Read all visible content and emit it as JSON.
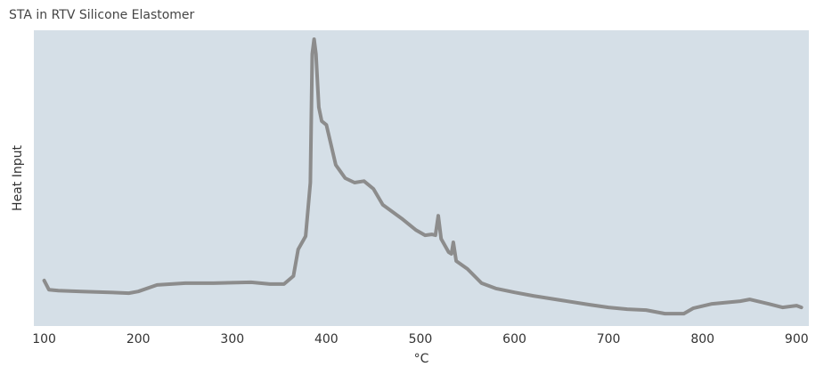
{
  "chart_data": {
    "type": "line",
    "title": "STA in RTV Silicone Elastomer",
    "x_label": "°C",
    "y_label": "Heat Input",
    "background": "#d5dfe7",
    "x": [
      100,
      105,
      115,
      140,
      170,
      190,
      200,
      220,
      250,
      280,
      320,
      340,
      355,
      365,
      370,
      378,
      383,
      385,
      387,
      389,
      392,
      395,
      400,
      410,
      420,
      430,
      440,
      450,
      460,
      480,
      495,
      505,
      512,
      516,
      519,
      522,
      530,
      533,
      535,
      538,
      550,
      565,
      580,
      600,
      620,
      650,
      680,
      700,
      720,
      740,
      760,
      780,
      790,
      810,
      840,
      850,
      870,
      885,
      900,
      905
    ],
    "series": [
      {
        "name": "Heat Input",
        "color": "#8c8c8c",
        "values": [
          15.4,
          12.3,
          12,
          11.7,
          11.4,
          11.1,
          11.7,
          13.9,
          14.5,
          14.5,
          14.8,
          14.2,
          14.2,
          16.9,
          25.9,
          30.4,
          48.5,
          92,
          97,
          92,
          74,
          69.3,
          68,
          54.5,
          50,
          48.5,
          49,
          46.4,
          41,
          36.4,
          32.5,
          30.7,
          31,
          30.7,
          37.3,
          29.5,
          25,
          24.4,
          28.3,
          22,
          19.3,
          14.5,
          12.7,
          11.4,
          10.2,
          8.7,
          7.2,
          6.3,
          5.7,
          5.4,
          4.2,
          4.2,
          6,
          7.5,
          8.4,
          9,
          7.5,
          6.3,
          6.9,
          6.3
        ]
      }
    ],
    "xlim": [
      89,
      913
    ],
    "ylim": [
      0,
      100
    ],
    "xticks": [
      100,
      200,
      300,
      400,
      500,
      600,
      700,
      800,
      900
    ]
  }
}
